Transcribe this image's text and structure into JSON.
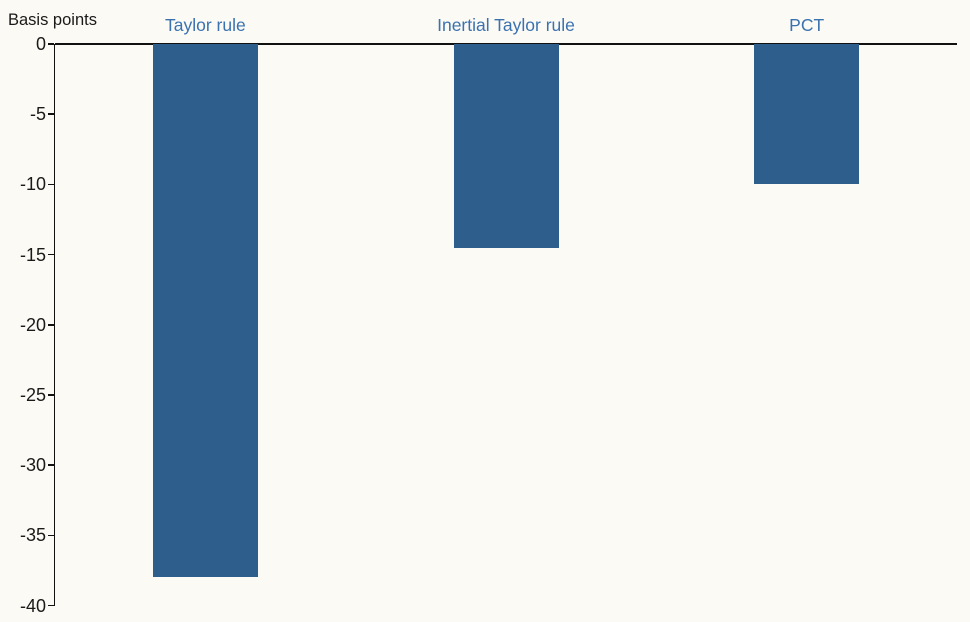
{
  "chart_data": {
    "type": "bar",
    "title": "",
    "ylabel": "Basis points",
    "xlabel": "",
    "categories": [
      "Taylor rule",
      "Inertial Taylor rule",
      "PCT"
    ],
    "values": [
      -38,
      -14.5,
      -10
    ],
    "ylim": [
      -40,
      0
    ],
    "yticks": [
      0,
      -5,
      -10,
      -15,
      -20,
      -25,
      -30,
      -35,
      -40
    ],
    "grid": false,
    "legend": "none",
    "orientation": "vertical",
    "colors": {
      "bar": "#2E5F8C",
      "category_label": "#3A72B0",
      "axis": "#111111",
      "tick_text": "#1A1A1A",
      "background": "#FCFAF4"
    }
  }
}
